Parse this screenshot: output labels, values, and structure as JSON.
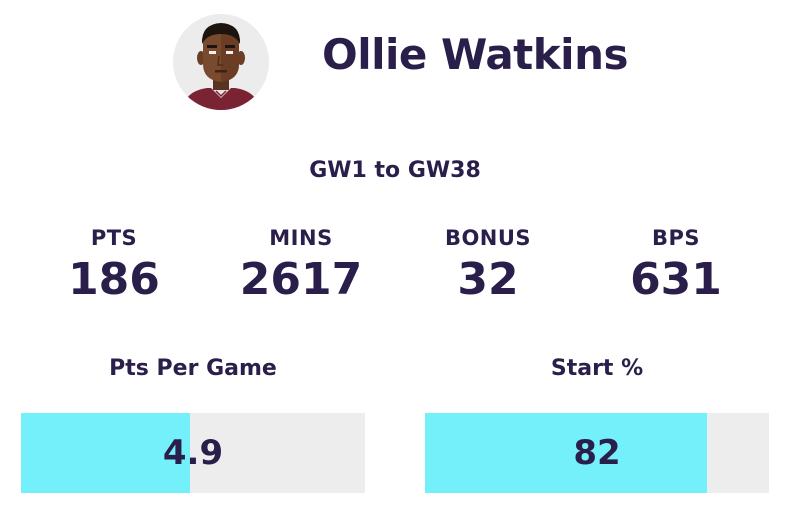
{
  "player": {
    "name": "Ollie Watkins",
    "avatar_icon": "player-avatar-icon"
  },
  "range_label": "GW1 to GW38",
  "stats": [
    {
      "label": "PTS",
      "value": "186"
    },
    {
      "label": "MINS",
      "value": "2617"
    },
    {
      "label": "BONUS",
      "value": "32"
    },
    {
      "label": "BPS",
      "value": "631"
    }
  ],
  "bars": {
    "pts_per_game": {
      "title": "Pts Per Game",
      "value": "4.9",
      "fill_fraction": 0.49
    },
    "start_pct": {
      "title": "Start %",
      "value": "82",
      "fill_fraction": 0.82
    }
  },
  "colors": {
    "text": "#2a1f4a",
    "bar_fill": "#74f0fa",
    "bar_track": "#ededed"
  }
}
